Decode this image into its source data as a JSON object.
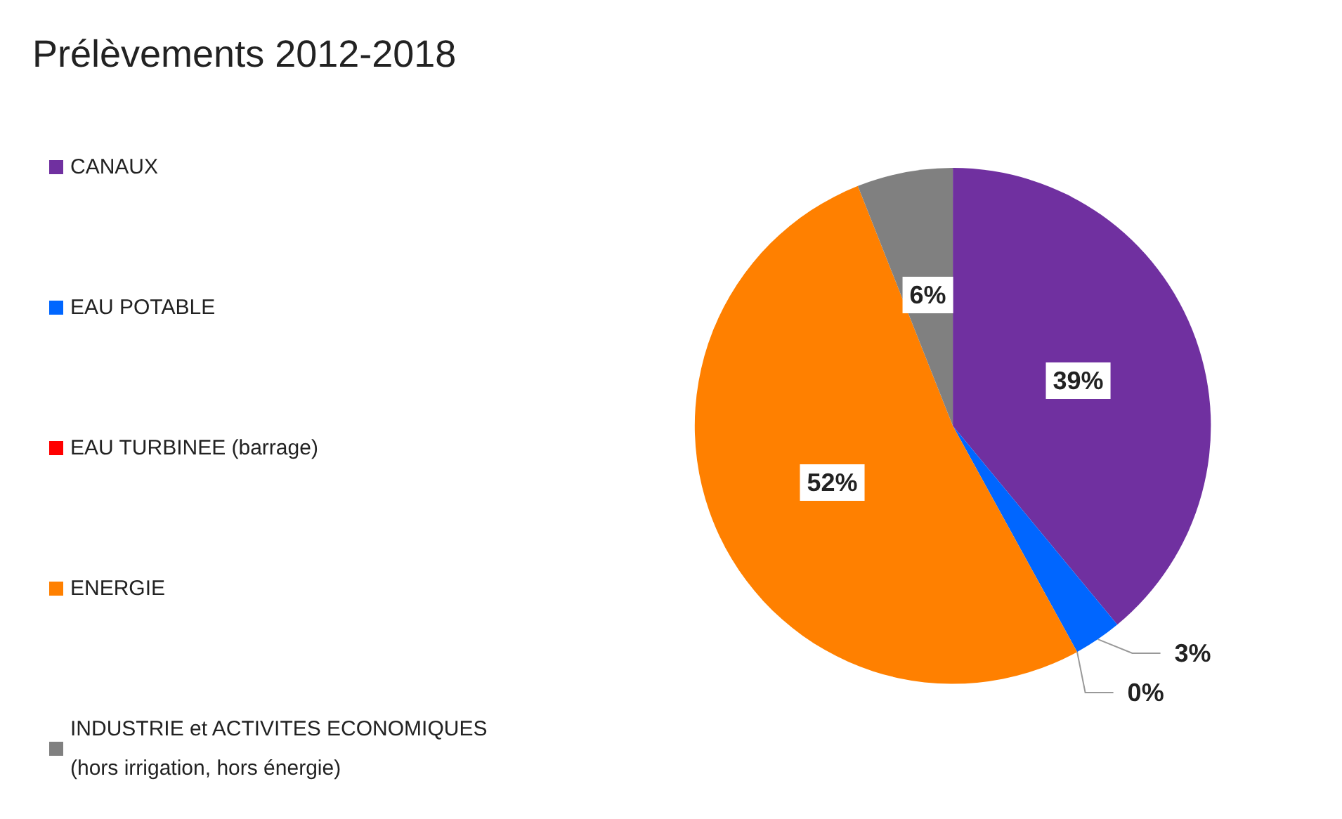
{
  "chart_data": {
    "type": "pie",
    "title": "Prélèvements 2012-2018",
    "categories": [
      "CANAUX",
      "EAU POTABLE",
      "EAU TURBINEE (barrage)",
      "ENERGIE",
      "INDUSTRIE et ACTIVITES ECONOMIQUES (hors irrigation, hors énergie)"
    ],
    "values": [
      39,
      3,
      0,
      52,
      6
    ],
    "colors": [
      "#7030a0",
      "#0066ff",
      "#ff0000",
      "#ff8000",
      "#808080"
    ],
    "value_labels": [
      "39%",
      "3%",
      "0%",
      "52%",
      "6%"
    ],
    "legend": "left"
  }
}
